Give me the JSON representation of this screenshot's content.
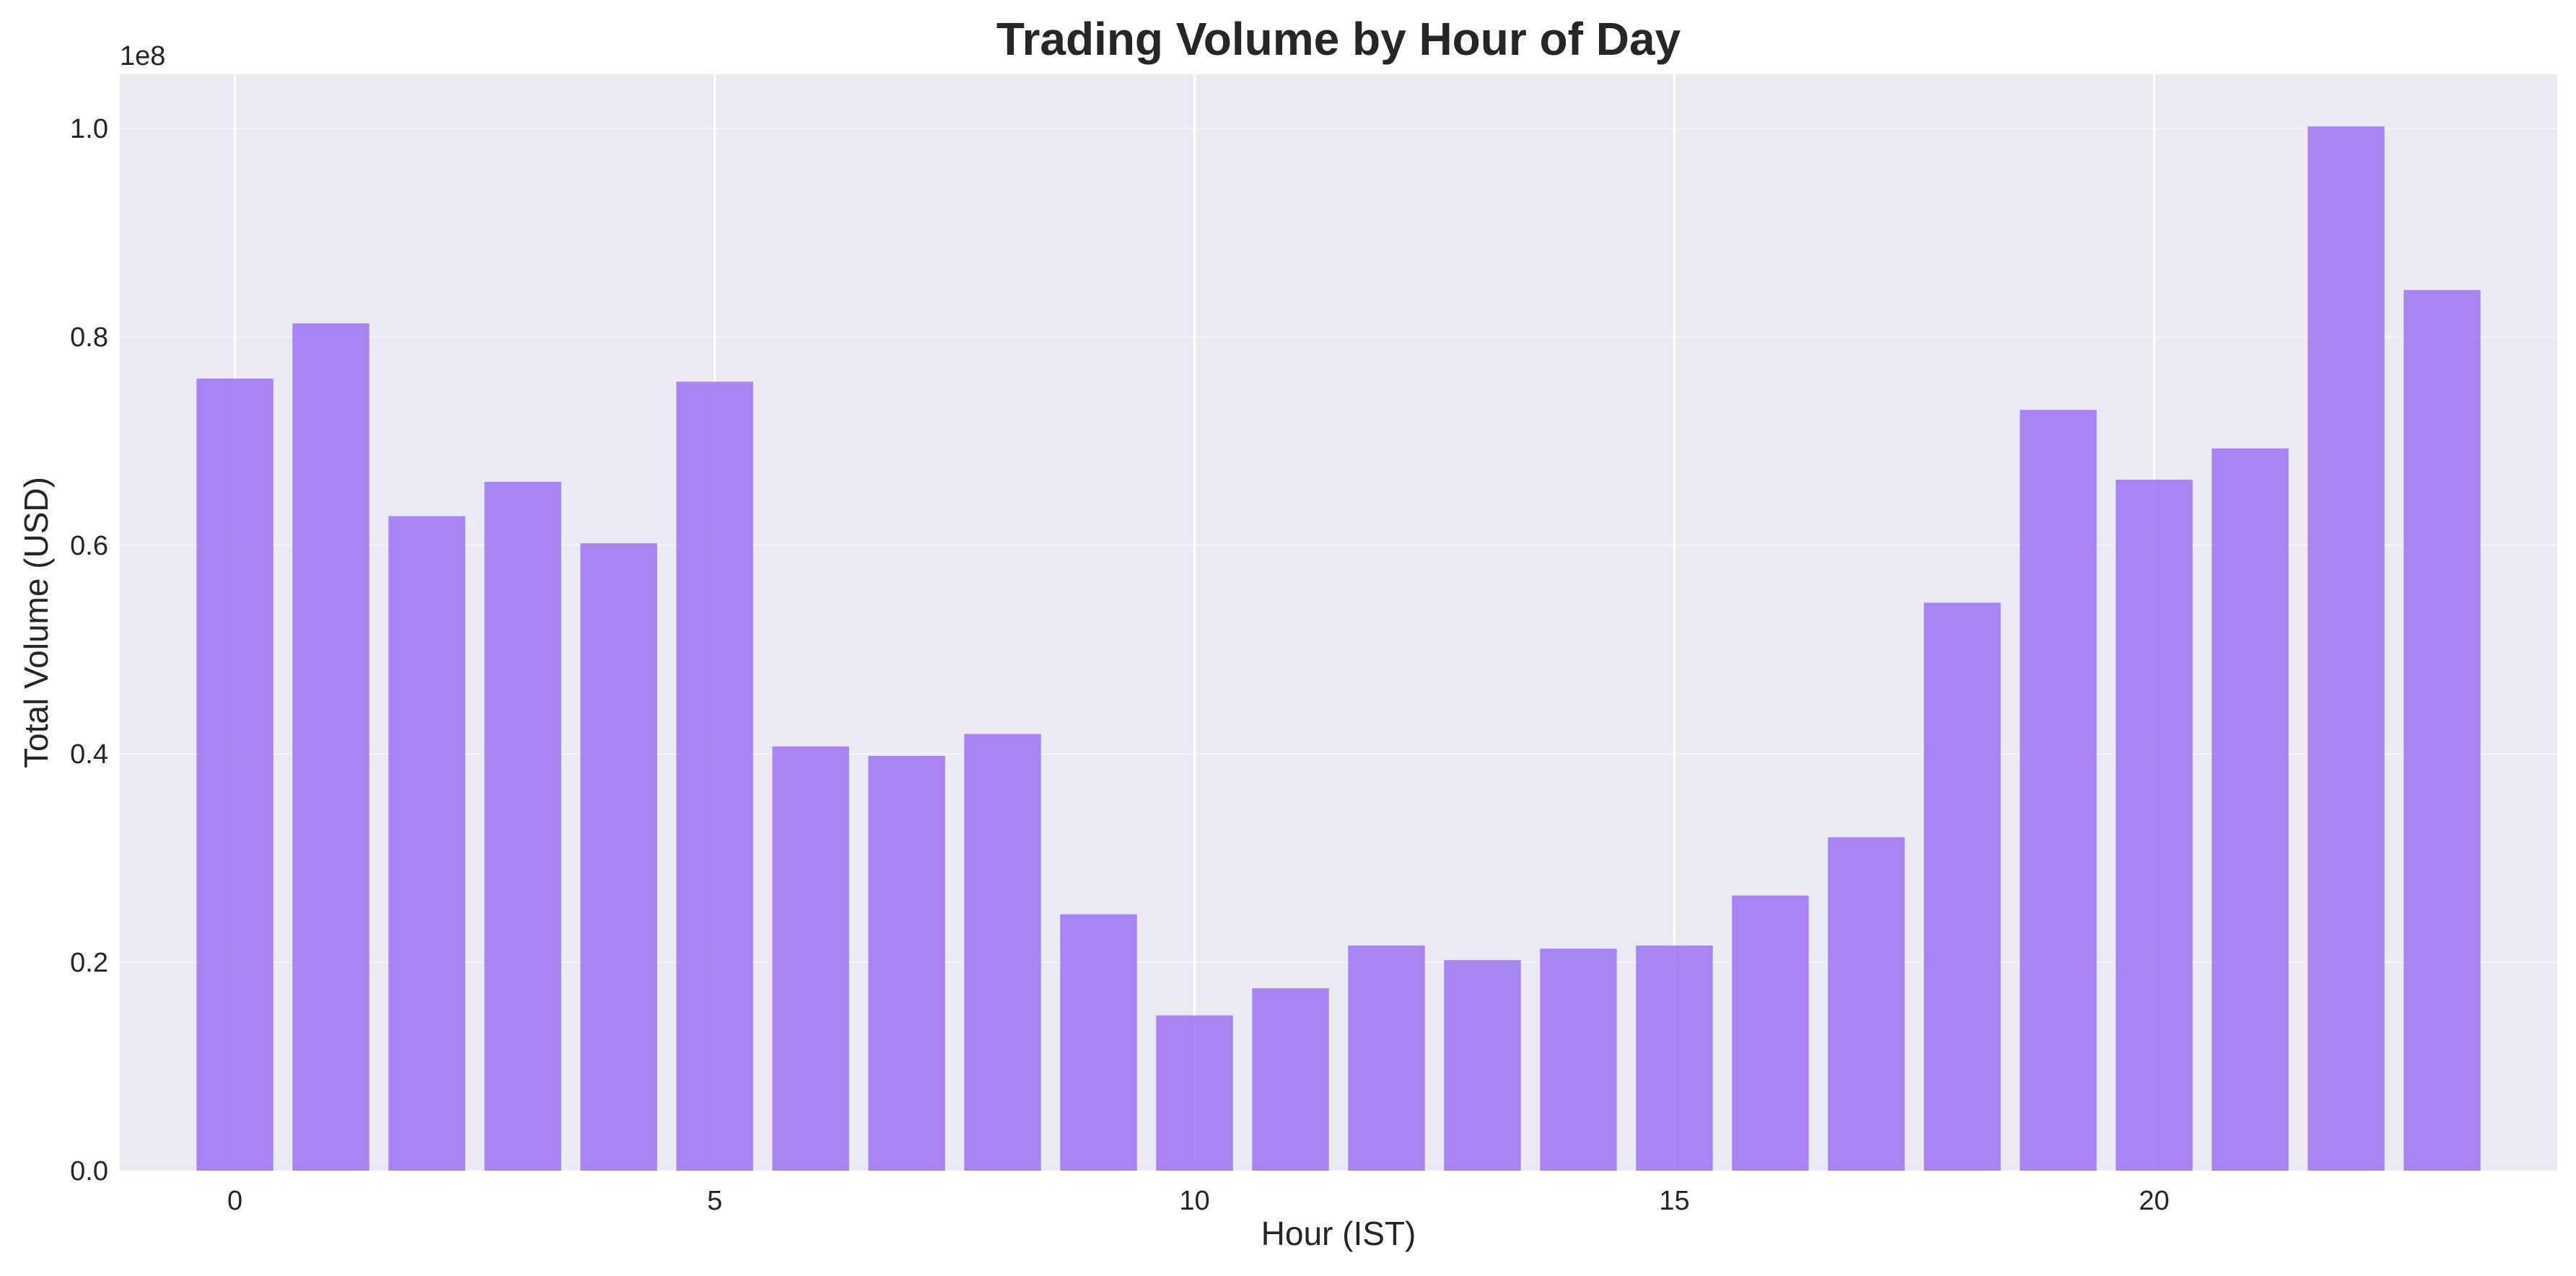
{
  "chart_data": {
    "type": "bar",
    "title": "Trading Volume by Hour of Day",
    "xlabel": "Hour (IST)",
    "ylabel": "Total Volume (USD)",
    "y_offset_label": "1e8",
    "x": [
      0,
      1,
      2,
      3,
      4,
      5,
      6,
      7,
      8,
      9,
      10,
      11,
      12,
      13,
      14,
      15,
      16,
      17,
      18,
      19,
      20,
      21,
      22,
      23
    ],
    "values": [
      0.76,
      0.813,
      0.628,
      0.661,
      0.602,
      0.757,
      0.407,
      0.398,
      0.419,
      0.246,
      0.149,
      0.175,
      0.216,
      0.202,
      0.213,
      0.216,
      0.264,
      0.32,
      0.545,
      0.73,
      0.663,
      0.693,
      1.002,
      0.845
    ],
    "value_multiplier": 100000000,
    "xlim": [
      -1.2,
      24.2
    ],
    "ylim": [
      0,
      1.052
    ],
    "xticks": [
      "0",
      "5",
      "10",
      "15",
      "20"
    ],
    "xtick_values": [
      0,
      5,
      10,
      15,
      20
    ],
    "yticks": [
      "0.0",
      "0.2",
      "0.4",
      "0.6",
      "0.8",
      "1.0"
    ],
    "ytick_values": [
      0,
      0.2,
      0.4,
      0.6,
      0.8,
      1.0
    ],
    "grid": true,
    "legend": "none",
    "colors": {
      "bar": "#9b72ef",
      "background": "#eaeaf2",
      "grid": "#ffffff",
      "text": "#262626"
    }
  }
}
